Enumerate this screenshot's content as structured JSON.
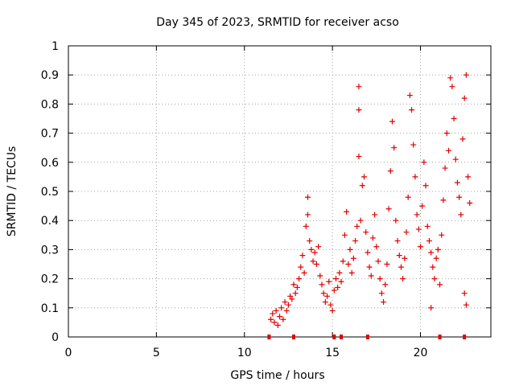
{
  "chart_data": {
    "type": "scatter",
    "title": "Day 345 of 2023, SRMTID for receiver acso",
    "xlabel": "GPS time / hours",
    "ylabel": "SRMTID / TECUs",
    "xlim": [
      0,
      24
    ],
    "ylim": [
      0,
      1
    ],
    "x_ticks": [
      0,
      5,
      10,
      15,
      20
    ],
    "y_ticks": [
      0,
      0.1,
      0.2,
      0.3,
      0.4,
      0.5,
      0.6,
      0.7,
      0.8,
      0.9,
      1
    ],
    "x_tick_labels": [
      "0",
      "5",
      "10",
      "15",
      "20"
    ],
    "y_tick_labels": [
      "0",
      "0.1",
      "0.2",
      "0.3",
      "0.4",
      "0.5",
      "0.6",
      "0.7",
      "0.8",
      "0.9",
      "1"
    ],
    "grid": true,
    "marker": "+",
    "color": "#e00000",
    "series": [
      {
        "name": "SRMTID",
        "points": [
          [
            11.5,
            0.06
          ],
          [
            11.6,
            0.08
          ],
          [
            11.7,
            0.05
          ],
          [
            11.8,
            0.09
          ],
          [
            11.9,
            0.04
          ],
          [
            12.0,
            0.07
          ],
          [
            12.1,
            0.1
          ],
          [
            12.2,
            0.06
          ],
          [
            12.3,
            0.12
          ],
          [
            12.4,
            0.09
          ],
          [
            12.5,
            0.11
          ],
          [
            12.6,
            0.14
          ],
          [
            12.7,
            0.13
          ],
          [
            12.8,
            0.18
          ],
          [
            12.9,
            0.15
          ],
          [
            13.0,
            0.17
          ],
          [
            13.1,
            0.2
          ],
          [
            13.2,
            0.24
          ],
          [
            13.3,
            0.28
          ],
          [
            13.4,
            0.22
          ],
          [
            13.5,
            0.38
          ],
          [
            13.6,
            0.48
          ],
          [
            13.6,
            0.42
          ],
          [
            13.7,
            0.33
          ],
          [
            13.8,
            0.3
          ],
          [
            13.9,
            0.26
          ],
          [
            14.0,
            0.29
          ],
          [
            14.1,
            0.25
          ],
          [
            14.2,
            0.31
          ],
          [
            14.3,
            0.21
          ],
          [
            14.4,
            0.18
          ],
          [
            14.5,
            0.15
          ],
          [
            14.6,
            0.12
          ],
          [
            14.7,
            0.14
          ],
          [
            14.8,
            0.19
          ],
          [
            14.9,
            0.11
          ],
          [
            15.0,
            0.09
          ],
          [
            15.1,
            0.16
          ],
          [
            15.2,
            0.2
          ],
          [
            15.3,
            0.17
          ],
          [
            15.4,
            0.22
          ],
          [
            15.5,
            0.19
          ],
          [
            15.6,
            0.26
          ],
          [
            15.7,
            0.35
          ],
          [
            15.8,
            0.43
          ],
          [
            15.9,
            0.25
          ],
          [
            16.0,
            0.3
          ],
          [
            16.1,
            0.22
          ],
          [
            16.2,
            0.27
          ],
          [
            16.3,
            0.33
          ],
          [
            16.4,
            0.38
          ],
          [
            16.5,
            0.62
          ],
          [
            16.5,
            0.86
          ],
          [
            16.5,
            0.78
          ],
          [
            16.6,
            0.4
          ],
          [
            16.7,
            0.52
          ],
          [
            16.8,
            0.55
          ],
          [
            16.9,
            0.36
          ],
          [
            17.0,
            0.29
          ],
          [
            17.1,
            0.24
          ],
          [
            17.2,
            0.21
          ],
          [
            17.3,
            0.34
          ],
          [
            17.4,
            0.42
          ],
          [
            17.5,
            0.31
          ],
          [
            17.6,
            0.26
          ],
          [
            17.7,
            0.2
          ],
          [
            17.8,
            0.15
          ],
          [
            17.9,
            0.12
          ],
          [
            18.0,
            0.18
          ],
          [
            18.1,
            0.25
          ],
          [
            18.2,
            0.44
          ],
          [
            18.3,
            0.57
          ],
          [
            18.4,
            0.74
          ],
          [
            18.5,
            0.65
          ],
          [
            18.6,
            0.4
          ],
          [
            18.7,
            0.33
          ],
          [
            18.8,
            0.28
          ],
          [
            18.9,
            0.24
          ],
          [
            19.0,
            0.2
          ],
          [
            19.1,
            0.27
          ],
          [
            19.2,
            0.36
          ],
          [
            19.3,
            0.48
          ],
          [
            19.4,
            0.83
          ],
          [
            19.5,
            0.78
          ],
          [
            19.6,
            0.66
          ],
          [
            19.7,
            0.55
          ],
          [
            19.8,
            0.42
          ],
          [
            19.9,
            0.37
          ],
          [
            20.0,
            0.31
          ],
          [
            20.1,
            0.45
          ],
          [
            20.2,
            0.6
          ],
          [
            20.3,
            0.52
          ],
          [
            20.4,
            0.38
          ],
          [
            20.5,
            0.33
          ],
          [
            20.6,
            0.29
          ],
          [
            20.7,
            0.24
          ],
          [
            20.8,
            0.2
          ],
          [
            20.9,
            0.27
          ],
          [
            21.0,
            0.3
          ],
          [
            21.1,
            0.18
          ],
          [
            21.2,
            0.35
          ],
          [
            21.3,
            0.47
          ],
          [
            21.4,
            0.58
          ],
          [
            21.5,
            0.7
          ],
          [
            21.6,
            0.64
          ],
          [
            21.7,
            0.89
          ],
          [
            21.8,
            0.86
          ],
          [
            21.9,
            0.75
          ],
          [
            22.0,
            0.61
          ],
          [
            22.1,
            0.53
          ],
          [
            22.2,
            0.48
          ],
          [
            22.3,
            0.42
          ],
          [
            22.4,
            0.68
          ],
          [
            22.5,
            0.82
          ],
          [
            22.6,
            0.9
          ],
          [
            22.7,
            0.55
          ],
          [
            22.8,
            0.46
          ],
          [
            22.5,
            0.15
          ],
          [
            22.6,
            0.11
          ],
          [
            20.6,
            0.1
          ]
        ]
      }
    ],
    "zero_markers_x": [
      11.4,
      12.8,
      15.1,
      15.5,
      17.0,
      21.1,
      22.5
    ]
  }
}
